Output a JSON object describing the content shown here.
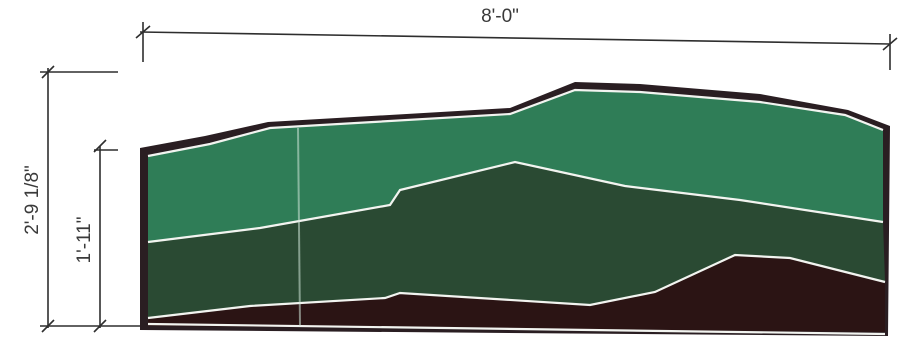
{
  "dimensions": {
    "width_label": "8'-0\"",
    "total_height_label": "2'-9 1/8\"",
    "lower_height_label": "1'-11\""
  },
  "colors": {
    "upper_band": "#2f7d57",
    "middle_band": "#2a4a33",
    "bottom_band": "#2b1414",
    "outline": "#2a1e22",
    "band_edge": "#f2f4f0",
    "dimension_lines": "#2e2e2e"
  }
}
